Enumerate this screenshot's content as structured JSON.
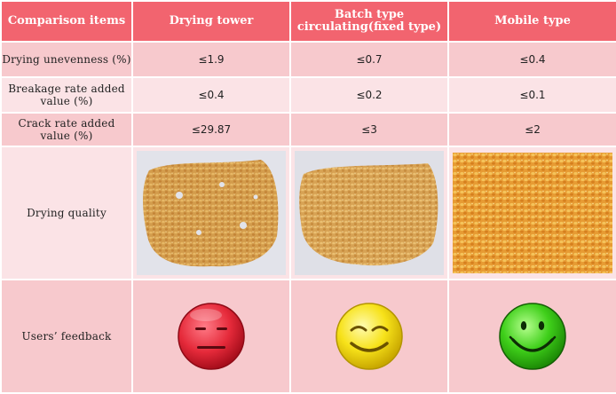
{
  "table": {
    "headers": [
      "Comparison items",
      "Drying tower",
      "Batch type circulating(fixed type)",
      "Mobile type"
    ],
    "rows": [
      {
        "label": "Drying unevenness (%)",
        "values": [
          "≤1.9",
          "≤0.7",
          "≤0.4"
        ]
      },
      {
        "label": "Breakage rate added value (%)",
        "values": [
          "≤0.4",
          "≤0.2",
          "≤0.1"
        ]
      },
      {
        "label": "Crack rate added value (%)",
        "values": [
          "≤29.87",
          "≤3",
          "≤2"
        ]
      }
    ],
    "quality_label": "Drying quality",
    "feedback_label": "Users’ feedback"
  },
  "icons": {
    "photos": [
      "corn-kernels-photo",
      "corn-kernels-photo",
      "corn-kernels-photo"
    ],
    "faces": [
      "neutral-face-icon",
      "smiling-face-icon",
      "happy-face-icon"
    ]
  },
  "colors": {
    "header_bg": "#f2646f",
    "row_dark": "#f7c9cd",
    "row_light": "#fbe3e6",
    "face_red": "#e52a3a",
    "face_yellow": "#f7e21a",
    "face_green": "#3fcf1a"
  }
}
